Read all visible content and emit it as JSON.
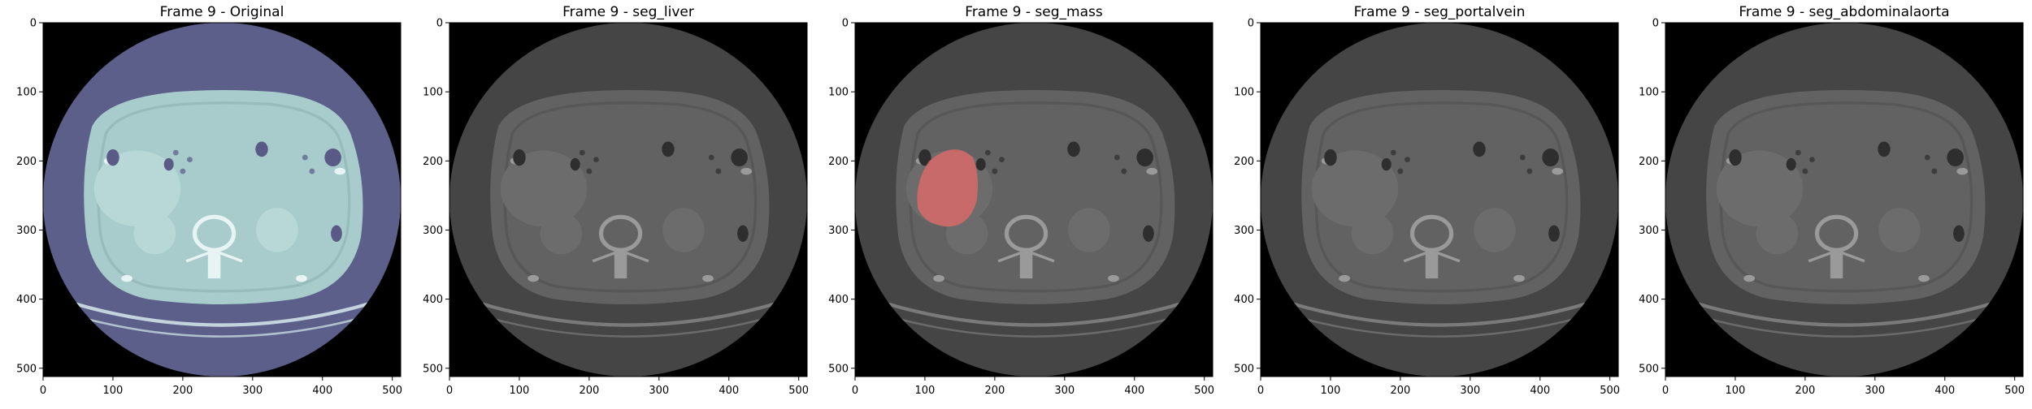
{
  "figure": {
    "panels": [
      {
        "id": "original",
        "title": "Frame 9 - Original",
        "mask": null
      },
      {
        "id": "seg_liver",
        "title": "Frame 9 - seg_liver",
        "mask": null
      },
      {
        "id": "seg_mass",
        "title": "Frame 9 - seg_mass",
        "mask": {
          "label": "seg_mass",
          "color": "#d86a6a"
        }
      },
      {
        "id": "seg_portalvein",
        "title": "Frame 9 - seg_portalvein",
        "mask": null
      },
      {
        "id": "seg_abdominalaorta",
        "title": "Frame 9 - seg_abdominalaorta",
        "mask": null
      }
    ],
    "x_ticks": [
      "0",
      "100",
      "200",
      "300",
      "400",
      "500"
    ],
    "y_ticks": [
      "0",
      "100",
      "200",
      "300",
      "400",
      "500"
    ],
    "image_extent": 512,
    "colors": {
      "original_tint": "#5c5f8a",
      "original_body": "#a8cccc",
      "gray_field": "#454545",
      "gray_body": "#626262",
      "mask": "#d86a6a"
    }
  }
}
